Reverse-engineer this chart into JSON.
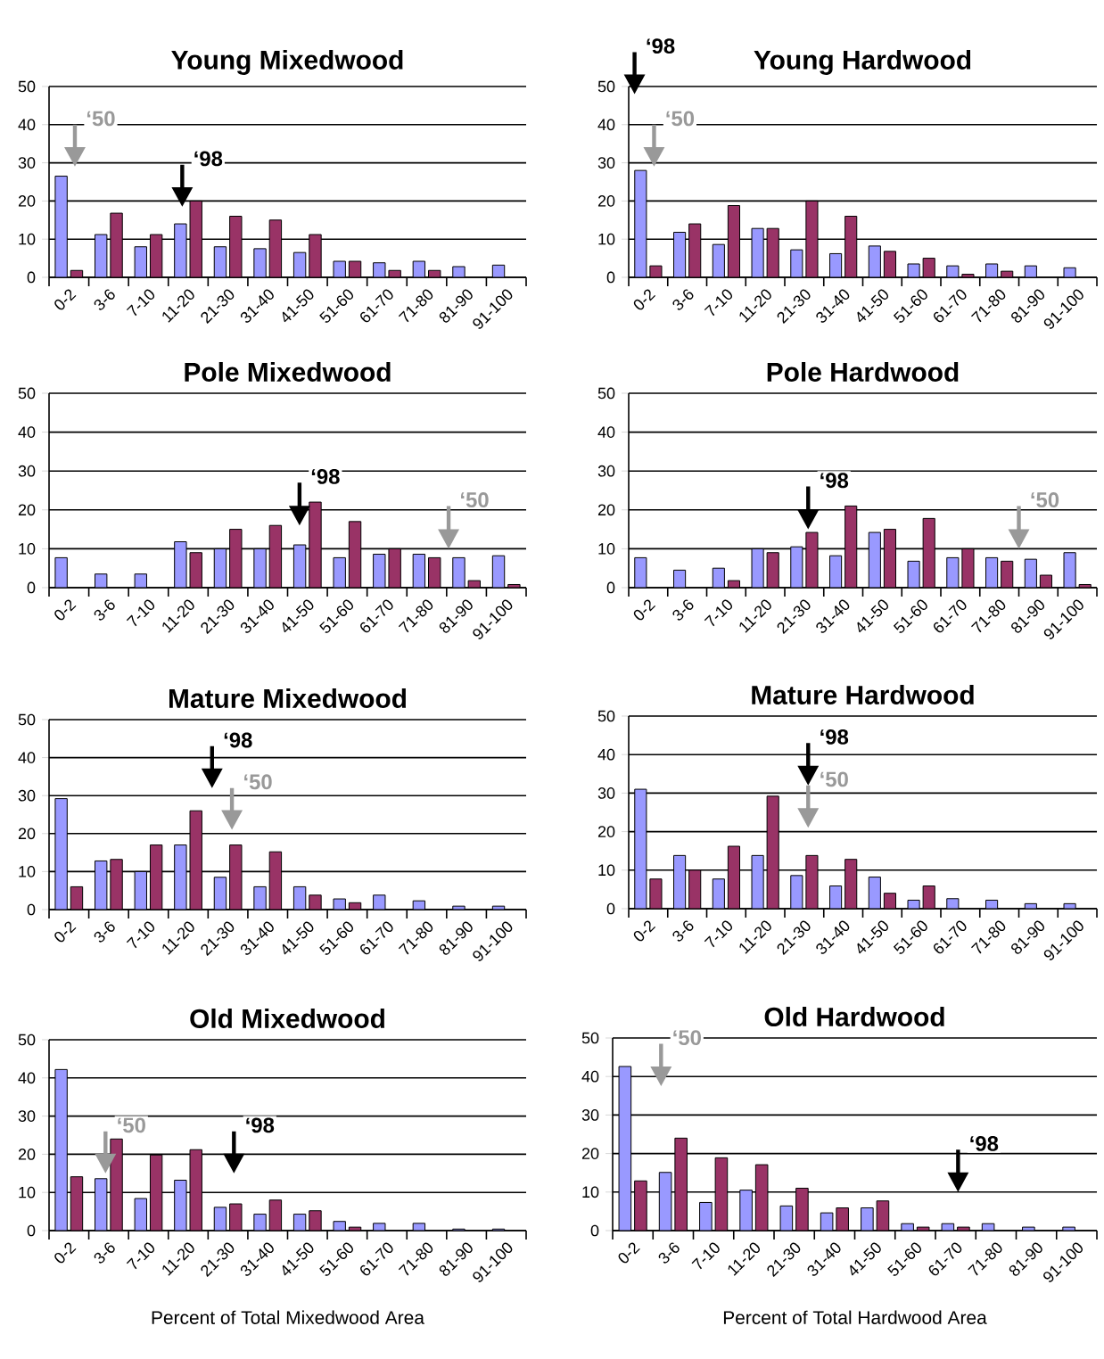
{
  "chart_data": [
    {
      "type": "bar",
      "title": "Young Mixedwood",
      "categories": [
        "0-2",
        "3-6",
        "7-10",
        "11-20",
        "21-30",
        "31-40",
        "41-50",
        "51-60",
        "61-70",
        "71-80",
        "81-90",
        "91-100"
      ],
      "ylim": [
        0,
        50
      ],
      "yticks": [
        0,
        10,
        20,
        30,
        40,
        50
      ],
      "grid": "y",
      "series": [
        {
          "color": "#9999ff",
          "values": [
            26.5,
            11.2,
            8,
            14,
            8,
            7.5,
            6.5,
            4.2,
            3.8,
            4.2,
            2.8,
            3.2
          ]
        },
        {
          "color": "#993366",
          "values": [
            1.8,
            16.8,
            11.2,
            20,
            16,
            15,
            11.2,
            4.2,
            1.8,
            1.8,
            null,
            null
          ]
        }
      ],
      "annotations": [
        "‘98",
        "‘50"
      ]
    },
    {
      "type": "bar",
      "title": "Young Hardwood",
      "categories": [
        "0-2",
        "3-6",
        "7-10",
        "11-20",
        "21-30",
        "31-40",
        "41-50",
        "51-60",
        "61-70",
        "71-80",
        "81-90",
        "91-100"
      ],
      "ylim": [
        0,
        50
      ],
      "yticks": [
        0,
        10,
        20,
        30,
        40,
        50
      ],
      "grid": "y",
      "series": [
        {
          "color": "#9999ff",
          "values": [
            28,
            11.8,
            8.6,
            12.8,
            7.2,
            6.2,
            8.2,
            3.5,
            3,
            3.5,
            3,
            2.5
          ]
        },
        {
          "color": "#993366",
          "values": [
            3,
            14,
            18.8,
            12.8,
            20,
            16,
            6.8,
            5,
            0.8,
            1.6,
            null,
            null
          ]
        }
      ],
      "annotations": [
        "‘98",
        "‘50"
      ]
    },
    {
      "type": "bar",
      "title": "Pole Mixedwood",
      "categories": [
        "0-2",
        "3-6",
        "7-10",
        "11-20",
        "21-30",
        "31-40",
        "41-50",
        "51-60",
        "61-70",
        "71-80",
        "81-90",
        "91-100"
      ],
      "ylim": [
        0,
        50
      ],
      "yticks": [
        0,
        10,
        20,
        30,
        40,
        50
      ],
      "grid": "y",
      "series": [
        {
          "color": "#9999ff",
          "values": [
            7.7,
            3.5,
            3.5,
            11.8,
            10,
            10,
            11,
            7.7,
            8.6,
            8.6,
            7.7,
            8.2
          ]
        },
        {
          "color": "#993366",
          "values": [
            null,
            null,
            null,
            9,
            15,
            16,
            22,
            17,
            10,
            7.7,
            1.8,
            0.8
          ]
        }
      ],
      "annotations": [
        "‘98",
        "‘50"
      ]
    },
    {
      "type": "bar",
      "title": "Pole Hardwood",
      "categories": [
        "0-2",
        "3-6",
        "7-10",
        "11-20",
        "21-30",
        "31-40",
        "41-50",
        "51-60",
        "61-70",
        "71-80",
        "81-90",
        "91-100"
      ],
      "ylim": [
        0,
        50
      ],
      "yticks": [
        0,
        10,
        20,
        30,
        40,
        50
      ],
      "grid": "y",
      "series": [
        {
          "color": "#9999ff",
          "values": [
            7.7,
            4.5,
            5,
            10,
            10.5,
            8.2,
            14.2,
            6.8,
            7.7,
            7.7,
            7.3,
            9
          ]
        },
        {
          "color": "#993366",
          "values": [
            null,
            null,
            1.8,
            9,
            14.2,
            21,
            15,
            17.8,
            10,
            6.8,
            3.2,
            0.8
          ]
        }
      ],
      "annotations": [
        "‘98",
        "‘50"
      ]
    },
    {
      "type": "bar",
      "title": "Mature Mixedwood",
      "categories": [
        "0-2",
        "3-6",
        "7-10",
        "11-20",
        "21-30",
        "31-40",
        "41-50",
        "51-60",
        "61-70",
        "71-80",
        "81-90",
        "91-100"
      ],
      "ylim": [
        0,
        50
      ],
      "yticks": [
        0,
        10,
        20,
        30,
        40,
        50
      ],
      "grid": "y",
      "series": [
        {
          "color": "#9999ff",
          "values": [
            29.2,
            12.8,
            10,
            17,
            8.5,
            6,
            6,
            2.8,
            3.8,
            2.3,
            0.9,
            0.9
          ]
        },
        {
          "color": "#993366",
          "values": [
            6,
            13.2,
            17,
            26,
            17,
            15.2,
            3.8,
            1.8,
            null,
            null,
            null,
            null
          ]
        }
      ],
      "annotations": [
        "‘98",
        "‘50"
      ]
    },
    {
      "type": "bar",
      "title": "Mature Hardwood",
      "categories": [
        "0-2",
        "3-6",
        "7-10",
        "11-20",
        "21-30",
        "31-40",
        "41-50",
        "51-60",
        "61-70",
        "71-80",
        "81-90",
        "91-100"
      ],
      "ylim": [
        0,
        50
      ],
      "yticks": [
        0,
        10,
        20,
        30,
        40,
        50
      ],
      "grid": "y",
      "series": [
        {
          "color": "#9999ff",
          "values": [
            31,
            13.8,
            7.7,
            13.8,
            8.6,
            5.9,
            8.2,
            2.2,
            2.6,
            2.2,
            1.3,
            1.3
          ]
        },
        {
          "color": "#993366",
          "values": [
            7.7,
            10,
            16.2,
            29.2,
            13.8,
            12.8,
            4,
            5.9,
            null,
            null,
            null,
            null
          ]
        }
      ],
      "annotations": [
        "‘98",
        "‘50"
      ]
    },
    {
      "type": "bar",
      "title": "Old Mixedwood",
      "xlabel": "Percent of Total Mixedwood Area",
      "categories": [
        "0-2",
        "3-6",
        "7-10",
        "11-20",
        "21-30",
        "31-40",
        "41-50",
        "51-60",
        "61-70",
        "71-80",
        "81-90",
        "91-100"
      ],
      "ylim": [
        0,
        50
      ],
      "yticks": [
        0,
        10,
        20,
        30,
        40,
        50
      ],
      "grid": "y",
      "series": [
        {
          "color": "#9999ff",
          "values": [
            42.2,
            13.6,
            8.4,
            13.2,
            6.1,
            4.3,
            4.3,
            2.4,
            1.9,
            1.9,
            0.4,
            0.4
          ]
        },
        {
          "color": "#993366",
          "values": [
            14.1,
            24,
            19.8,
            21.2,
            7,
            8,
            5.2,
            0.9,
            null,
            null,
            null,
            null
          ]
        }
      ],
      "annotations": [
        "‘98",
        "‘50"
      ]
    },
    {
      "type": "bar",
      "title": "Old Hardwood",
      "xlabel": "Percent of Total Hardwood Area",
      "categories": [
        "0-2",
        "3-6",
        "7-10",
        "11-20",
        "21-30",
        "31-40",
        "41-50",
        "51-60",
        "61-70",
        "71-80",
        "81-90",
        "91-100"
      ],
      "ylim": [
        0,
        50
      ],
      "yticks": [
        0,
        10,
        20,
        30,
        40,
        50
      ],
      "grid": "y",
      "series": [
        {
          "color": "#9999ff",
          "values": [
            42.6,
            15.1,
            7.3,
            10.5,
            6.4,
            4.6,
            5.9,
            1.8,
            1.8,
            1.8,
            0.9,
            0.9
          ]
        },
        {
          "color": "#993366",
          "values": [
            12.9,
            24,
            18.9,
            17.1,
            11,
            5.9,
            7.7,
            0.9,
            0.9,
            null,
            null,
            null
          ]
        }
      ],
      "annotations": [
        "‘98",
        "‘50"
      ]
    }
  ]
}
